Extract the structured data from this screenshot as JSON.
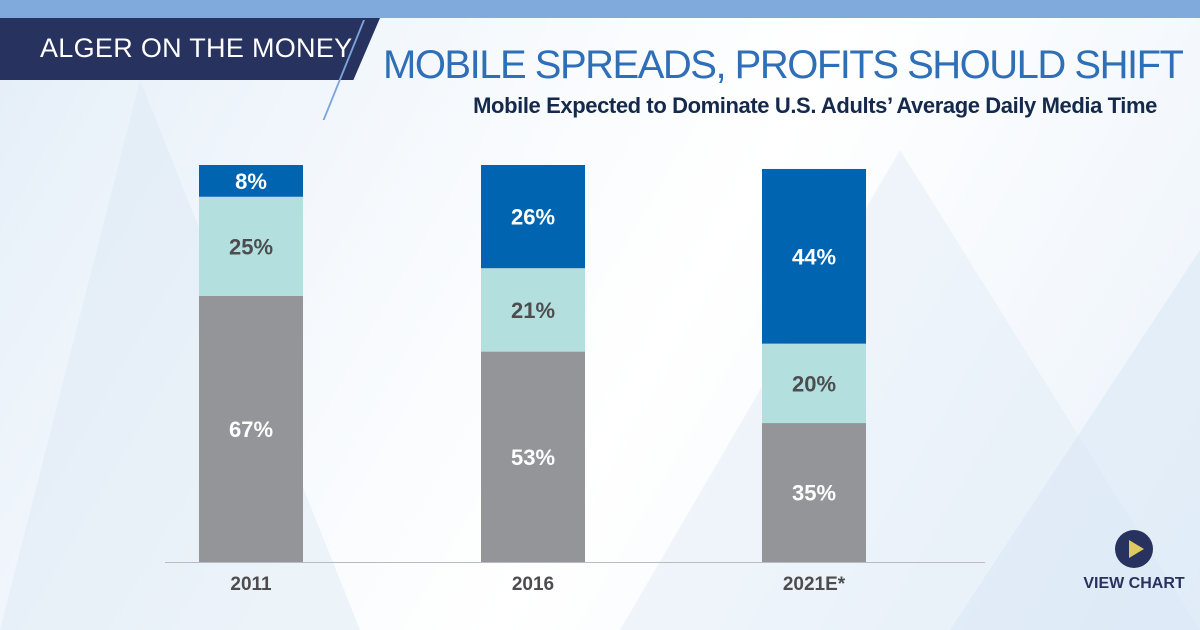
{
  "header": {
    "brand": "ALGER ON THE MONEY",
    "title": "MOBILE SPREADS, PROFITS SHOULD SHIFT",
    "subtitle": "Mobile Expected to Dominate U.S. Adults’ Average Daily Media Time"
  },
  "cta": {
    "label": "VIEW CHART",
    "icon": "play-icon"
  },
  "colors": {
    "mobile": "#0064b0",
    "middle": "#b3e0df",
    "other": "#939598",
    "navy": "#28325e"
  },
  "chart_data": {
    "type": "bar",
    "stacked": true,
    "categories": [
      "2011",
      "2016",
      "2021E*"
    ],
    "series": [
      {
        "values": [
          67,
          53,
          35
        ],
        "labels": [
          "67%",
          "53%",
          "35%"
        ],
        "color": "#939598"
      },
      {
        "values": [
          25,
          21,
          20
        ],
        "labels": [
          "25%",
          "21%",
          "20%"
        ],
        "color": "#b3e0df"
      },
      {
        "values": [
          8,
          26,
          44
        ],
        "labels": [
          "8%",
          "26%",
          "44%"
        ],
        "color": "#0064b0"
      }
    ],
    "ylim": [
      0,
      100
    ],
    "grid": false,
    "legend": "none"
  }
}
